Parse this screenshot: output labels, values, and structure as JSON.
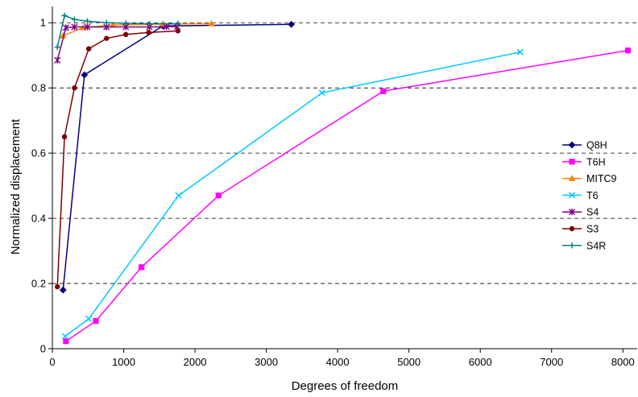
{
  "chart_data": {
    "type": "line",
    "title": "",
    "xlabel": "Degrees of freedom",
    "ylabel": "Normalized displacement",
    "xlim": [
      0,
      8200
    ],
    "ylim": [
      0,
      1.05
    ],
    "xticks": [
      0,
      1000,
      2000,
      3000,
      4000,
      5000,
      6000,
      7000,
      8000
    ],
    "yticks": [
      0,
      0.2,
      0.4,
      0.6,
      0.8,
      1
    ],
    "xtick_labels": [
      "0",
      "1000",
      "2000",
      "3000",
      "4000",
      "5000",
      "6000",
      "7000",
      "8000"
    ],
    "ytick_labels": [
      "0",
      "0.2",
      "0.4",
      "0.6",
      "0.8",
      "1"
    ],
    "grid": "horizontal dashed",
    "legend_position": "right",
    "series": [
      {
        "name": "Q8H",
        "color": "#000080",
        "marker": "diamond",
        "x": [
          150,
          450,
          1550,
          3350
        ],
        "y": [
          0.18,
          0.84,
          0.99,
          0.995
        ]
      },
      {
        "name": "T6H",
        "color": "#ff00ff",
        "marker": "square",
        "x": [
          190,
          610,
          1250,
          2330,
          4640,
          8070
        ],
        "y": [
          0.023,
          0.085,
          0.25,
          0.47,
          0.79,
          0.915
        ]
      },
      {
        "name": "MITC9",
        "color": "#ff8000",
        "marker": "triangle",
        "x": [
          150,
          430,
          850,
          1550,
          2230
        ],
        "y": [
          0.96,
          0.985,
          0.993,
          0.996,
          0.997
        ]
      },
      {
        "name": "T6",
        "color": "#00c8ff",
        "marker": "x",
        "x": [
          180,
          510,
          1770,
          3780,
          6560
        ],
        "y": [
          0.038,
          0.092,
          0.47,
          0.785,
          0.91
        ]
      },
      {
        "name": "S4",
        "color": "#800080",
        "marker": "star",
        "x": [
          70,
          190,
          310,
          490,
          760,
          1030,
          1360,
          1600,
          1750
        ],
        "y": [
          0.885,
          0.985,
          0.987,
          0.987,
          0.987,
          0.987,
          0.987,
          0.988,
          0.988
        ]
      },
      {
        "name": "S3",
        "color": "#800000",
        "marker": "circle",
        "x": [
          70,
          170,
          310,
          510,
          760,
          1030,
          1350,
          1760
        ],
        "y": [
          0.19,
          0.65,
          0.8,
          0.92,
          0.952,
          0.964,
          0.97,
          0.975
        ]
      },
      {
        "name": "S4R",
        "color": "#008080",
        "marker": "plus",
        "x": [
          70,
          170,
          310,
          490,
          760,
          1030,
          1360,
          1760
        ],
        "y": [
          0.925,
          1.022,
          1.01,
          1.005,
          1.0,
          0.998,
          0.997,
          0.997
        ]
      }
    ]
  }
}
